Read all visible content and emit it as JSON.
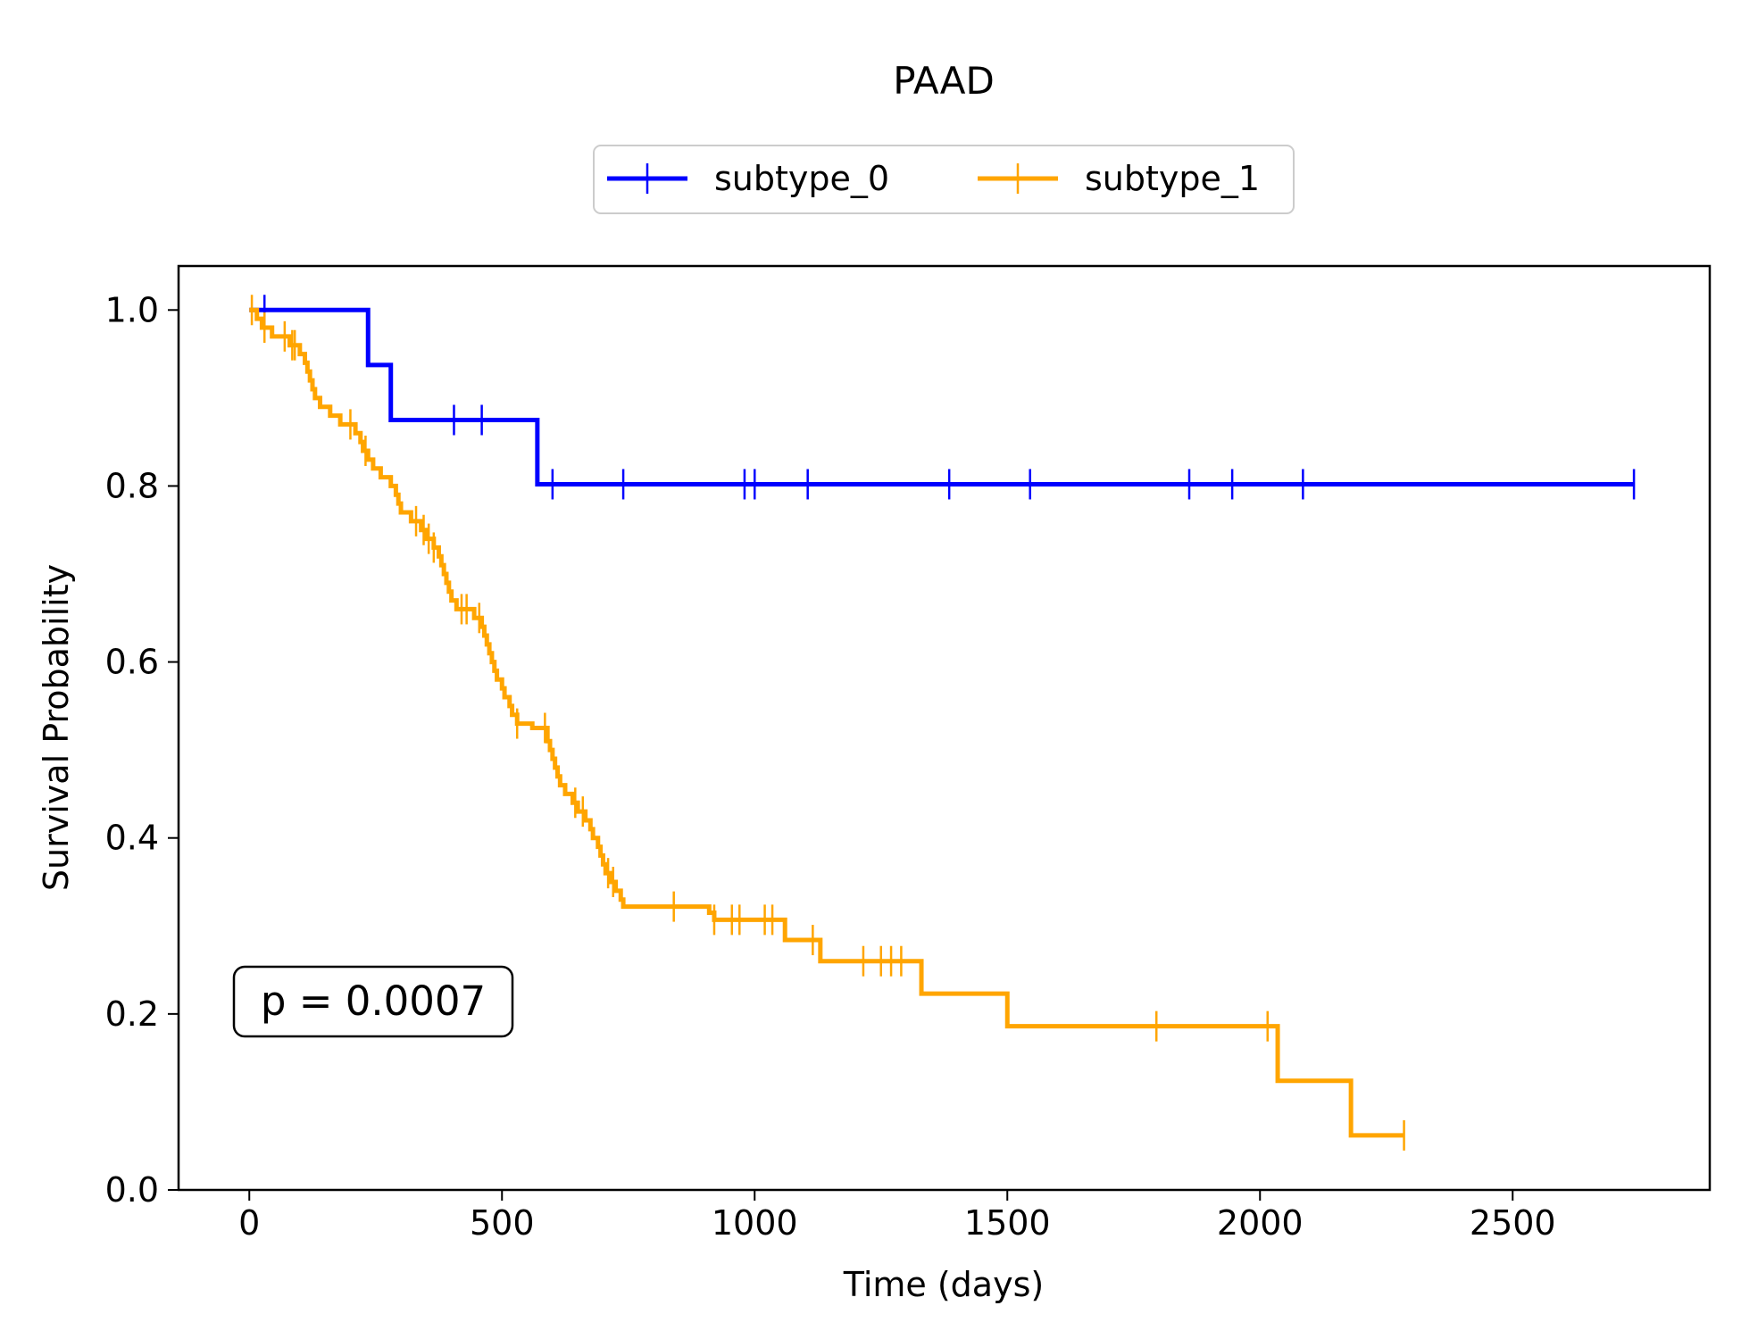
{
  "chart_data": {
    "type": "line",
    "subtype": "kaplan-meier-step",
    "title": "PAAD",
    "xlabel": "Time (days)",
    "ylabel": "Survival Probability",
    "xlim": [
      -140,
      2890
    ],
    "ylim": [
      0,
      1.05
    ],
    "xticks": [
      0,
      500,
      1000,
      1500,
      2000,
      2500
    ],
    "yticks": [
      0.0,
      0.2,
      0.4,
      0.6,
      0.8,
      1.0
    ],
    "xtick_labels": [
      "0",
      "500",
      "1000",
      "1500",
      "2000",
      "2500"
    ],
    "ytick_labels": [
      "0.0",
      "0.2",
      "0.4",
      "0.6",
      "0.8",
      "1.0"
    ],
    "grid": false,
    "legend": {
      "position": "top-center",
      "columns": 2
    },
    "annotation": {
      "text": "p = 0.0007",
      "x": 30,
      "y": 0.21
    },
    "series": [
      {
        "name": "subtype_0",
        "color": "#0000ff",
        "steps": [
          [
            0,
            1.0
          ],
          [
            235,
            0.9375
          ],
          [
            280,
            0.875
          ],
          [
            570,
            0.802
          ],
          [
            2740,
            0.802
          ]
        ],
        "censored": [
          [
            30,
            1.0
          ],
          [
            405,
            0.875
          ],
          [
            460,
            0.875
          ],
          [
            600,
            0.802
          ],
          [
            740,
            0.802
          ],
          [
            980,
            0.802
          ],
          [
            1000,
            0.802
          ],
          [
            1105,
            0.802
          ],
          [
            1385,
            0.802
          ],
          [
            1545,
            0.802
          ],
          [
            1860,
            0.802
          ],
          [
            1945,
            0.802
          ],
          [
            2085,
            0.802
          ],
          [
            2740,
            0.802
          ]
        ]
      },
      {
        "name": "subtype_1",
        "color": "#ffa500",
        "steps": [
          [
            0,
            1.0
          ],
          [
            15,
            0.99
          ],
          [
            25,
            0.98
          ],
          [
            45,
            0.97
          ],
          [
            80,
            0.96
          ],
          [
            100,
            0.95
          ],
          [
            110,
            0.94
          ],
          [
            115,
            0.93
          ],
          [
            120,
            0.92
          ],
          [
            125,
            0.91
          ],
          [
            130,
            0.9
          ],
          [
            140,
            0.89
          ],
          [
            160,
            0.88
          ],
          [
            180,
            0.87
          ],
          [
            210,
            0.86
          ],
          [
            220,
            0.85
          ],
          [
            225,
            0.84
          ],
          [
            235,
            0.83
          ],
          [
            245,
            0.82
          ],
          [
            260,
            0.81
          ],
          [
            280,
            0.8
          ],
          [
            290,
            0.79
          ],
          [
            295,
            0.78
          ],
          [
            300,
            0.77
          ],
          [
            320,
            0.76
          ],
          [
            340,
            0.75
          ],
          [
            350,
            0.74
          ],
          [
            365,
            0.73
          ],
          [
            375,
            0.72
          ],
          [
            380,
            0.71
          ],
          [
            385,
            0.7
          ],
          [
            390,
            0.69
          ],
          [
            395,
            0.68
          ],
          [
            400,
            0.67
          ],
          [
            410,
            0.66
          ],
          [
            445,
            0.65
          ],
          [
            460,
            0.64
          ],
          [
            465,
            0.63
          ],
          [
            470,
            0.62
          ],
          [
            475,
            0.61
          ],
          [
            480,
            0.6
          ],
          [
            485,
            0.59
          ],
          [
            490,
            0.58
          ],
          [
            500,
            0.57
          ],
          [
            505,
            0.56
          ],
          [
            515,
            0.55
          ],
          [
            520,
            0.54
          ],
          [
            530,
            0.53
          ],
          [
            560,
            0.525
          ],
          [
            590,
            0.51
          ],
          [
            595,
            0.5
          ],
          [
            600,
            0.49
          ],
          [
            605,
            0.48
          ],
          [
            610,
            0.47
          ],
          [
            615,
            0.46
          ],
          [
            625,
            0.45
          ],
          [
            640,
            0.44
          ],
          [
            650,
            0.43
          ],
          [
            665,
            0.42
          ],
          [
            675,
            0.41
          ],
          [
            680,
            0.4
          ],
          [
            690,
            0.39
          ],
          [
            695,
            0.38
          ],
          [
            700,
            0.37
          ],
          [
            705,
            0.36
          ],
          [
            715,
            0.35
          ],
          [
            725,
            0.34
          ],
          [
            735,
            0.33
          ],
          [
            740,
            0.322
          ],
          [
            910,
            0.315
          ],
          [
            920,
            0.307
          ],
          [
            1060,
            0.284
          ],
          [
            1130,
            0.26
          ],
          [
            1330,
            0.223
          ],
          [
            1500,
            0.186
          ],
          [
            2035,
            0.124
          ],
          [
            2180,
            0.062
          ],
          [
            2285,
            0.062
          ]
        ],
        "censored": [
          [
            5,
            1.0
          ],
          [
            30,
            0.98
          ],
          [
            70,
            0.97
          ],
          [
            85,
            0.96
          ],
          [
            90,
            0.96
          ],
          [
            200,
            0.87
          ],
          [
            230,
            0.84
          ],
          [
            330,
            0.76
          ],
          [
            345,
            0.75
          ],
          [
            355,
            0.74
          ],
          [
            365,
            0.73
          ],
          [
            420,
            0.66
          ],
          [
            430,
            0.66
          ],
          [
            455,
            0.65
          ],
          [
            530,
            0.53
          ],
          [
            585,
            0.525
          ],
          [
            645,
            0.44
          ],
          [
            660,
            0.43
          ],
          [
            710,
            0.36
          ],
          [
            720,
            0.35
          ],
          [
            840,
            0.322
          ],
          [
            920,
            0.307
          ],
          [
            955,
            0.307
          ],
          [
            970,
            0.307
          ],
          [
            1020,
            0.307
          ],
          [
            1035,
            0.307
          ],
          [
            1115,
            0.284
          ],
          [
            1215,
            0.26
          ],
          [
            1250,
            0.26
          ],
          [
            1270,
            0.26
          ],
          [
            1290,
            0.26
          ],
          [
            1795,
            0.186
          ],
          [
            2015,
            0.186
          ],
          [
            2285,
            0.062
          ]
        ]
      }
    ]
  }
}
